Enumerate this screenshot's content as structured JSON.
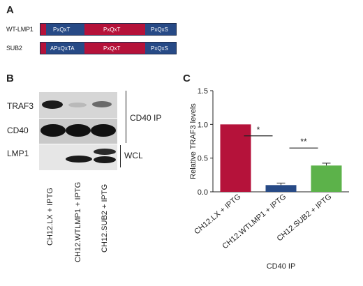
{
  "panels": {
    "a": "A",
    "b": "B",
    "c": "C"
  },
  "panel_a": {
    "constructs": [
      {
        "name": "WT-LMP1",
        "segments": [
          {
            "label": "PxQxT",
            "color": "blue"
          },
          {
            "label": "PxQxT",
            "color": "red"
          },
          {
            "label": "PxQxS",
            "color": "blue"
          }
        ]
      },
      {
        "name": "SUB2",
        "segments": [
          {
            "label": "APxQxTA",
            "color": "blue"
          },
          {
            "label": "PxQxT",
            "color": "red"
          },
          {
            "label": "PxQxS",
            "color": "blue"
          }
        ]
      }
    ]
  },
  "panel_b": {
    "blots": [
      "TRAF3",
      "CD40",
      "LMP1"
    ],
    "group_labels": {
      "ip": "CD40 IP",
      "wcl": "WCL"
    },
    "lanes": [
      "CH12.LX + IPTG",
      "CH12.WTLMP1 + IPTG",
      "CH12.SUB2 + IPTG"
    ],
    "band_intensity": {
      "TRAF3": [
        1.0,
        0.1,
        0.4
      ],
      "CD40": [
        1.0,
        1.0,
        1.0
      ],
      "LMP1": [
        0.0,
        1.0,
        1.0
      ]
    }
  },
  "chart_data": {
    "type": "bar",
    "categories": [
      "CH12.LX + IPTG",
      "CH12.WTLMP1 + IPTG",
      "CH12.SUB2 + IPTG"
    ],
    "values": [
      1.0,
      0.1,
      0.39
    ],
    "errors": [
      0,
      0.03,
      0.035
    ],
    "colors": [
      "#b5123a",
      "#274a86",
      "#5cb24a"
    ],
    "ylabel": "Relative TRAF3 levels",
    "xlabel": "CD40 IP",
    "ylim": [
      0,
      1.5
    ],
    "yticks": [
      "0.0",
      "0.5",
      "1.0",
      "1.5"
    ],
    "yticks_values": [
      0,
      0.5,
      1.0,
      1.5
    ],
    "significance": [
      {
        "from": 0,
        "to": 1,
        "label": "*"
      },
      {
        "from": 1,
        "to": 2,
        "label": "**"
      }
    ]
  }
}
